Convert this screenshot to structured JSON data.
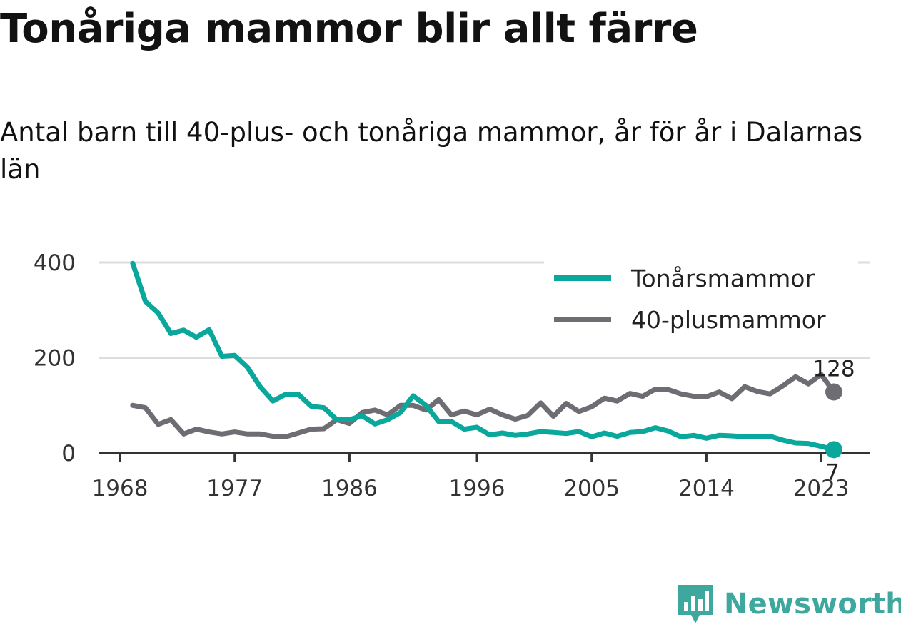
{
  "title": "Tonåriga mammor blir allt färre",
  "subtitle": "Antal barn till 40-plus- och tonåriga mammor, år för år i Dalarnas län",
  "brand": "Newsworthy",
  "colors": {
    "teen": "#0aa89c",
    "forty": "#6e6d73",
    "grid": "#dddddd",
    "axis": "#333333"
  },
  "chart_data": {
    "type": "line",
    "x_ticks": [
      "1968",
      "1977",
      "1986",
      "1996",
      "2005",
      "2014",
      "2023"
    ],
    "y_ticks": [
      "0",
      "200",
      "400"
    ],
    "ylim": [
      0,
      400
    ],
    "legend_position": "top-right",
    "grid": true,
    "x": [
      1969,
      1970,
      1971,
      1972,
      1973,
      1974,
      1975,
      1976,
      1977,
      1978,
      1979,
      1980,
      1981,
      1982,
      1983,
      1984,
      1985,
      1986,
      1987,
      1988,
      1989,
      1990,
      1991,
      1992,
      1993,
      1994,
      1995,
      1996,
      1997,
      1998,
      1999,
      2000,
      2001,
      2002,
      2003,
      2004,
      2005,
      2006,
      2007,
      2008,
      2009,
      2010,
      2011,
      2012,
      2013,
      2014,
      2015,
      2016,
      2017,
      2018,
      2019,
      2020,
      2021,
      2022,
      2023,
      2024
    ],
    "series": [
      {
        "name": "Tonårsmammor",
        "color": "#0aa89c",
        "end_label": "7",
        "values": [
          398,
          318,
          294,
          251,
          258,
          243,
          259,
          203,
          205,
          180,
          139,
          109,
          123,
          123,
          98,
          95,
          70,
          70,
          78,
          61,
          70,
          85,
          120,
          100,
          66,
          66,
          50,
          54,
          38,
          42,
          37,
          40,
          45,
          43,
          41,
          45,
          34,
          42,
          35,
          43,
          45,
          53,
          46,
          34,
          37,
          31,
          37,
          36,
          34,
          35,
          35,
          27,
          21,
          20,
          14,
          7
        ]
      },
      {
        "name": "40-plusmammor",
        "color": "#6e6d73",
        "end_label": "128",
        "values": [
          100,
          95,
          60,
          70,
          40,
          50,
          44,
          40,
          44,
          40,
          40,
          35,
          34,
          42,
          50,
          51,
          70,
          62,
          85,
          90,
          80,
          100,
          100,
          90,
          112,
          80,
          88,
          80,
          92,
          80,
          71,
          79,
          105,
          77,
          104,
          87,
          97,
          115,
          109,
          125,
          119,
          134,
          133,
          124,
          119,
          118,
          128,
          114,
          139,
          129,
          124,
          141,
          160,
          145,
          165,
          128
        ]
      }
    ]
  }
}
